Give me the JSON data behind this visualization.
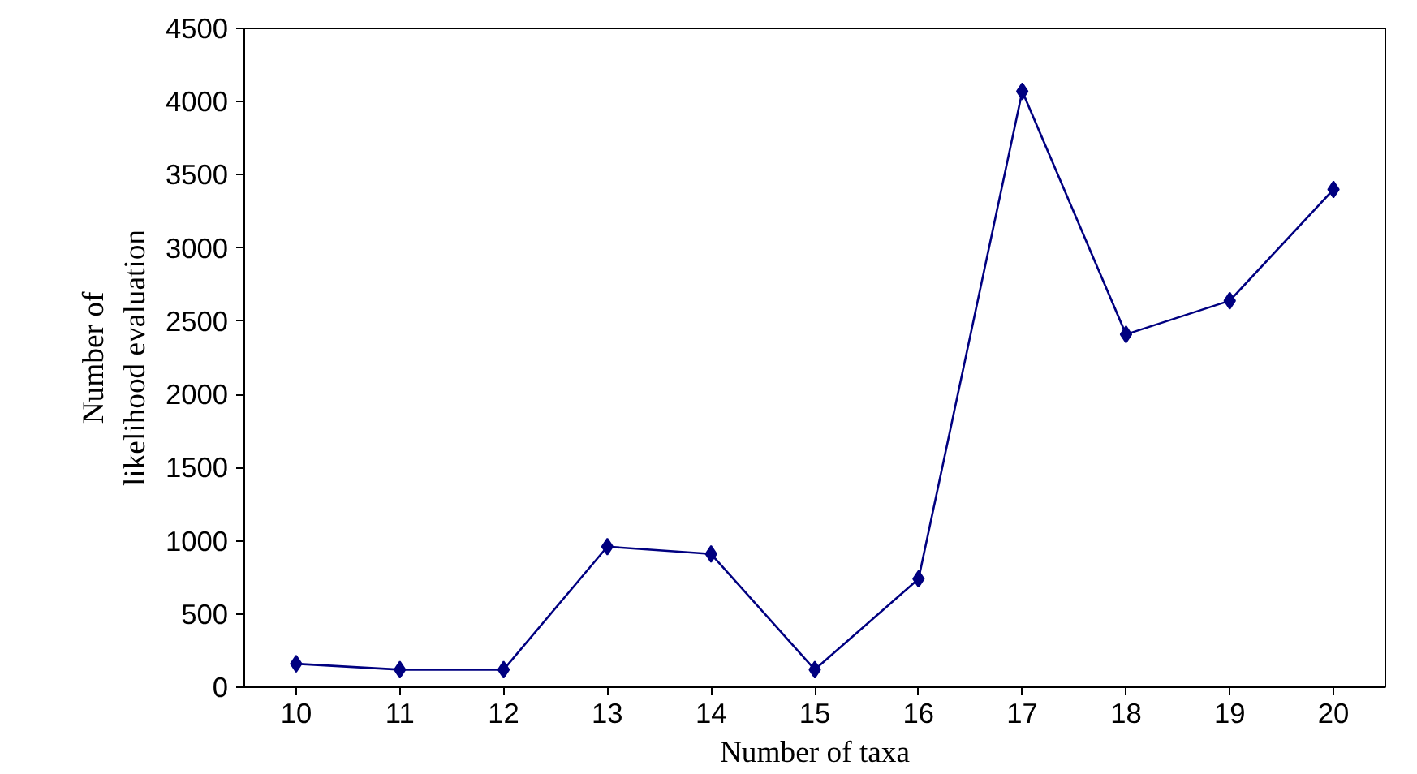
{
  "chart_data": {
    "type": "line",
    "xlabel": "Number of taxa",
    "ylabel": "Number of\nlikelihood evaluation",
    "categories": [
      "10",
      "11",
      "12",
      "13",
      "14",
      "15",
      "16",
      "17",
      "18",
      "19",
      "20"
    ],
    "series": [
      {
        "color": "#000080",
        "values": [
          160,
          120,
          120,
          960,
          910,
          120,
          740,
          4070,
          2410,
          2640,
          3400
        ]
      }
    ],
    "ylim": [
      0,
      4500
    ],
    "yticks": [
      0,
      500,
      1000,
      1500,
      2000,
      2500,
      3000,
      3500,
      4000,
      4500
    ],
    "marker": "diamond",
    "grid": false
  }
}
